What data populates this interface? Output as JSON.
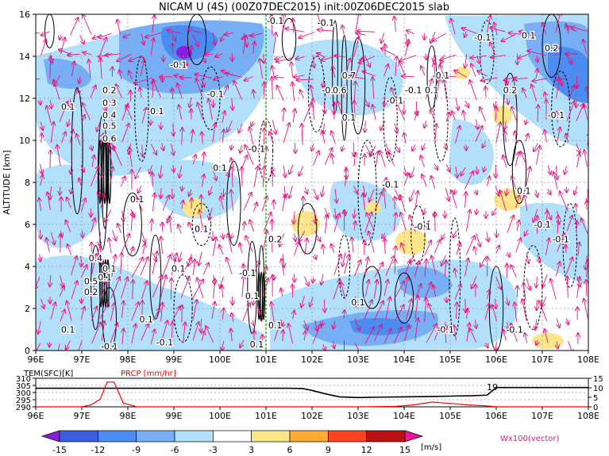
{
  "title": "NICAM U (4S) (00Z07DEC2015) init:00Z06DEC2015 slab",
  "colors": {
    "vector": "#e8127c",
    "contour": "#000000",
    "marker": "#22aa22",
    "tem_line": "#000000",
    "prcp_line": "#ff0000"
  },
  "chart_data": [
    {
      "type": "heatmap",
      "title": "NICAM U (4S) (00Z07DEC2015) init:00Z06DEC2015 slab",
      "ylabel": "ALTITUDE [km]",
      "xlim": [
        96,
        108
      ],
      "ylim": [
        0,
        16
      ],
      "x_ticks": [
        "96E",
        "97E",
        "98E",
        "99E",
        "100E",
        "101E",
        "102E",
        "103E",
        "104E",
        "105E",
        "106E",
        "107E",
        "108E"
      ],
      "y_ticks": [
        "0",
        "2",
        "4",
        "6",
        "8",
        "10",
        "12",
        "14",
        "16"
      ],
      "grid": true,
      "overlays": [
        "shaded U [m/s]",
        "contours (vertical velocity)",
        "wind vectors Wx100"
      ],
      "marker_x": 101,
      "contour_labels": [
        {
          "text": "0.1",
          "x": 96.7,
          "y": 11.6
        },
        {
          "text": "0.2",
          "x": 97.6,
          "y": 12.4
        },
        {
          "text": "0.3",
          "x": 97.6,
          "y": 11.8
        },
        {
          "text": "0.4",
          "x": 97.6,
          "y": 11.2
        },
        {
          "text": "0.5",
          "x": 97.6,
          "y": 10.7
        },
        {
          "text": "0.6",
          "x": 97.6,
          "y": 10.1
        },
        {
          "text": "-0.1",
          "x": 99.1,
          "y": 13.6
        },
        {
          "text": "-0.1",
          "x": 99.9,
          "y": 12.2
        },
        {
          "text": "-0.1",
          "x": 98.6,
          "y": 11.4
        },
        {
          "text": "-0.1",
          "x": 101.2,
          "y": 15.7
        },
        {
          "text": "-0.1",
          "x": 100.8,
          "y": 9.6
        },
        {
          "text": "0.1",
          "x": 100,
          "y": 8.7
        },
        {
          "text": "0.1",
          "x": 98.2,
          "y": 7.2
        },
        {
          "text": "0.1",
          "x": 99.6,
          "y": 5.8
        },
        {
          "text": "0.2",
          "x": 101.2,
          "y": 5.3
        },
        {
          "text": "-0.2",
          "x": 102.4,
          "y": 12.4
        },
        {
          "text": "0.7",
          "x": 102.8,
          "y": 13.1
        },
        {
          "text": "0.6",
          "x": 102.6,
          "y": 12.4
        },
        {
          "text": "0.1",
          "x": 102.8,
          "y": 11.1
        },
        {
          "text": "-0.1",
          "x": 102.3,
          "y": 15.6
        },
        {
          "text": "-0.1",
          "x": 104.8,
          "y": 13.1
        },
        {
          "text": "-0.1",
          "x": 103.8,
          "y": 11.9
        },
        {
          "text": "-0.1",
          "x": 104.2,
          "y": 12.4
        },
        {
          "text": "-0.1",
          "x": 103.7,
          "y": 7.9
        },
        {
          "text": "-0.1",
          "x": 104.4,
          "y": 5.9
        },
        {
          "text": "0.1",
          "x": 104.6,
          "y": 12.4
        },
        {
          "text": "0.1",
          "x": 106.6,
          "y": 7.6
        },
        {
          "text": "0.2",
          "x": 106.3,
          "y": 12.4
        },
        {
          "text": "-0.1",
          "x": 105.7,
          "y": 14.9
        },
        {
          "text": "0.1",
          "x": 106.7,
          "y": 15.0
        },
        {
          "text": "0.2",
          "x": 107.2,
          "y": 14.4
        },
        {
          "text": "-0.1",
          "x": 107.3,
          "y": 11.2
        },
        {
          "text": "-0.1",
          "x": 107.4,
          "y": 5.3
        },
        {
          "text": "-0.1",
          "x": 107.0,
          "y": 6.0
        },
        {
          "text": "0.1",
          "x": 97.5,
          "y": 3.5
        },
        {
          "text": "0.4",
          "x": 97.3,
          "y": 4.4
        },
        {
          "text": "0.1",
          "x": 97.6,
          "y": 3.9
        },
        {
          "text": "0.5",
          "x": 97.2,
          "y": 3.3
        },
        {
          "text": "0.2",
          "x": 97.2,
          "y": 2.8
        },
        {
          "text": "0.1",
          "x": 96.7,
          "y": 1.0
        },
        {
          "text": "-0.1",
          "x": 97.6,
          "y": 0.2
        },
        {
          "text": "0.1",
          "x": 98.4,
          "y": 1.5
        },
        {
          "text": "-0.1",
          "x": 98.8,
          "y": 0.4
        },
        {
          "text": "0.1",
          "x": 99.1,
          "y": 3.9
        },
        {
          "text": "-0.1",
          "x": 100.6,
          "y": 3.7
        },
        {
          "text": "0.1",
          "x": 100.7,
          "y": 2.6
        },
        {
          "text": "0.1",
          "x": 101.2,
          "y": 1.2
        },
        {
          "text": "0.1",
          "x": 100.8,
          "y": 0.3
        },
        {
          "text": "0.1",
          "x": 103.0,
          "y": 2.3
        },
        {
          "text": "-0.1",
          "x": 104.9,
          "y": 1.0
        },
        {
          "text": "-0.1",
          "x": 106.4,
          "y": 1.0
        }
      ]
    },
    {
      "type": "line",
      "title": "",
      "xlim": [
        96,
        108
      ],
      "series": [
        {
          "name": "TEM(SFC)[K]",
          "label_value": "19",
          "x": [
            96,
            97,
            98,
            99,
            100,
            101,
            101.5,
            101.8,
            102.0,
            102.3,
            102.6,
            103,
            103.5,
            104,
            104.5,
            105,
            105.5,
            105.8,
            106.0,
            106.5,
            107,
            108
          ],
          "values": [
            303,
            303,
            303,
            303,
            303,
            303,
            303,
            302.8,
            301.5,
            299,
            297,
            296.5,
            296.8,
            297,
            297.2,
            297.5,
            297.8,
            298.2,
            303.5,
            303.5,
            303.5,
            303.5
          ]
        },
        {
          "name": "PRCP [mm/hr]",
          "x": [
            96,
            97,
            97.2,
            97.4,
            97.55,
            97.7,
            97.9,
            98.2,
            99,
            100,
            101,
            102,
            103,
            103.8,
            104.2,
            104.6,
            105,
            105.4,
            105.8,
            106,
            107,
            108
          ],
          "values": [
            0,
            0,
            0.1,
            0.4,
            1.3,
            1.3,
            0.2,
            0,
            0,
            0,
            0,
            0,
            0,
            0.02,
            0.1,
            0.25,
            0.18,
            0.1,
            0.05,
            0,
            0,
            0
          ]
        }
      ],
      "left_ticks": [
        "310",
        "305",
        "300",
        "295",
        "290"
      ],
      "right_ticks": [
        "15",
        "10",
        "5",
        "0"
      ],
      "x_ticks": [
        "96E",
        "97E",
        "98E",
        "99E",
        "100E",
        "101E",
        "102E",
        "103E",
        "104E",
        "105E",
        "106E",
        "107E",
        "108E"
      ]
    }
  ],
  "colorbar": {
    "levels": [
      "-15",
      "-12",
      "-9",
      "-6",
      "-3",
      "3",
      "6",
      "9",
      "12",
      "15"
    ],
    "colors": [
      "#8a1ee0",
      "#3a5fe0",
      "#4c8cf0",
      "#78aef4",
      "#b2e0fa",
      "#ffffff",
      "#fde68a",
      "#ffaa33",
      "#ff4422",
      "#bb1111",
      "#e81895"
    ],
    "unit": "[m/s]"
  },
  "vector_label": "Wx100(vector)"
}
